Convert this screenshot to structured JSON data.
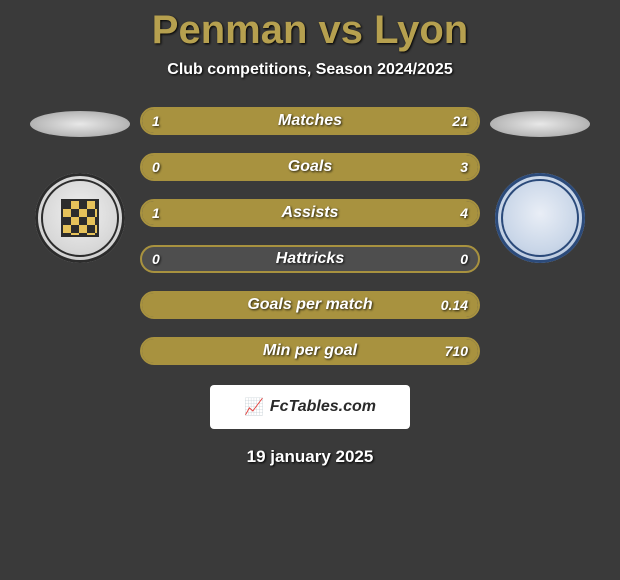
{
  "title": "Penman vs Lyon",
  "subtitle": "Club competitions, Season 2024/2025",
  "date": "19 january 2025",
  "footer_label": "FcTables.com",
  "colors": {
    "accent": "#b6a04f",
    "bar_border": "#a8923f",
    "bar_bg": "#4e4e4e",
    "bar_fill": "#a8923f"
  },
  "stats": [
    {
      "label": "Matches",
      "left_val": "1",
      "right_val": "21",
      "left_pct": 4.5,
      "right_pct": 95.5
    },
    {
      "label": "Goals",
      "left_val": "0",
      "right_val": "3",
      "left_pct": 0,
      "right_pct": 100
    },
    {
      "label": "Assists",
      "left_val": "1",
      "right_val": "4",
      "left_pct": 20,
      "right_pct": 80
    },
    {
      "label": "Hattricks",
      "left_val": "0",
      "right_val": "0",
      "left_pct": 0,
      "right_pct": 0
    },
    {
      "label": "Goals per match",
      "left_val": "",
      "right_val": "0.14",
      "left_pct": 0,
      "right_pct": 100
    },
    {
      "label": "Min per goal",
      "left_val": "",
      "right_val": "710",
      "left_pct": 0,
      "right_pct": 100
    }
  ],
  "badges": {
    "left_name": "st-mirren-badge",
    "right_name": "queen-of-south-badge"
  }
}
